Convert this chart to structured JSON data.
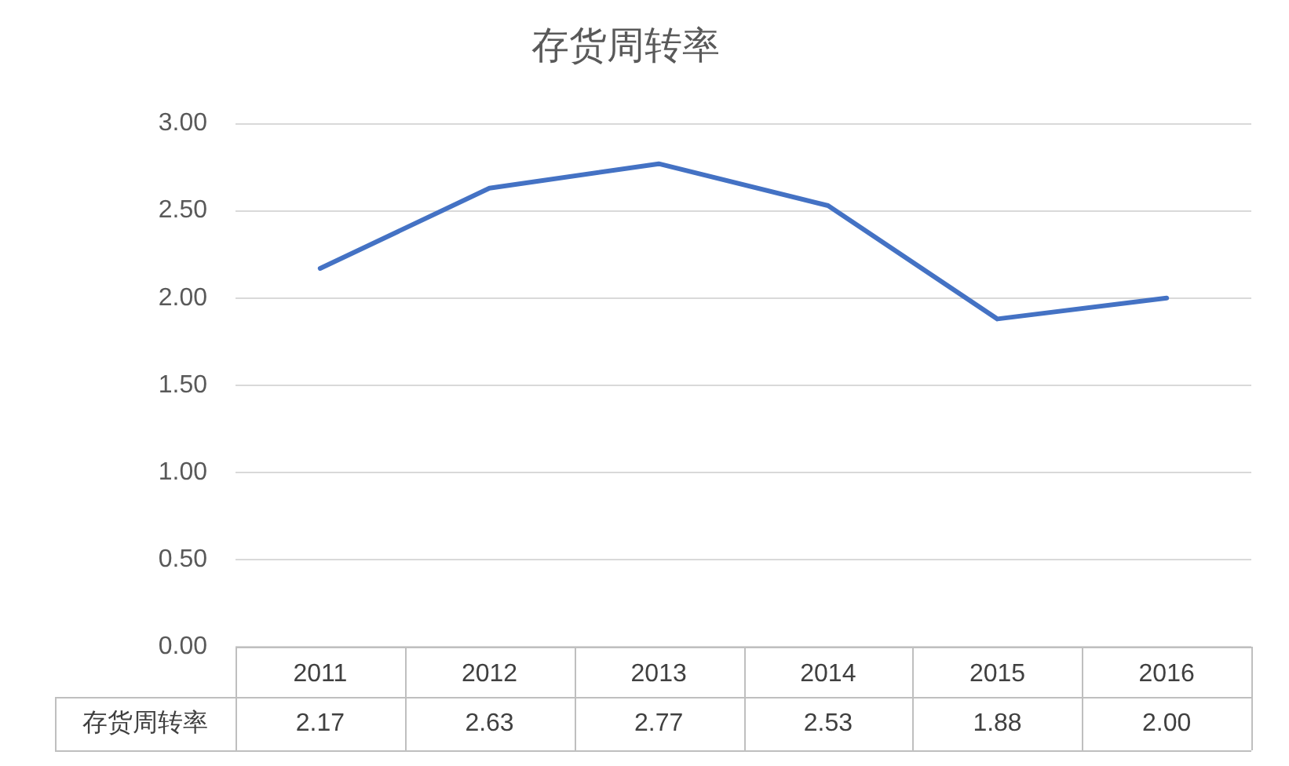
{
  "chart_data": {
    "type": "line",
    "title": "存货周转率",
    "categories": [
      "2011",
      "2012",
      "2013",
      "2014",
      "2015",
      "2016"
    ],
    "series": [
      {
        "name": "存货周转率",
        "color": "#4472c4",
        "values": [
          2.17,
          2.63,
          2.77,
          2.53,
          1.88,
          2.0
        ],
        "value_labels": [
          "2.17",
          "2.63",
          "2.77",
          "2.53",
          "1.88",
          "2.00"
        ]
      }
    ],
    "ylim": [
      0,
      3
    ],
    "yticks": [
      {
        "value": 0,
        "label": "0.00"
      },
      {
        "value": 0.5,
        "label": "0.50"
      },
      {
        "value": 1,
        "label": "1.00"
      },
      {
        "value": 1.5,
        "label": "1.50"
      },
      {
        "value": 2,
        "label": "2.00"
      },
      {
        "value": 2.5,
        "label": "2.50"
      },
      {
        "value": 3,
        "label": "3.00"
      }
    ],
    "grid": "y",
    "marker": "none",
    "line_style": "solid"
  }
}
